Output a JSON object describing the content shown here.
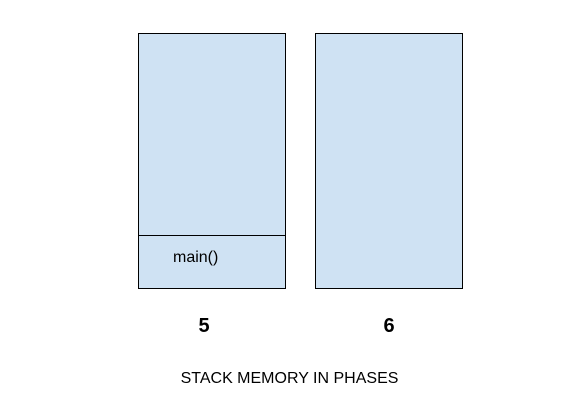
{
  "colors": {
    "stack_fill": "#cfe2f3",
    "stroke": "#000000",
    "background": "#ffffff"
  },
  "phases": [
    {
      "label": "5",
      "frames": [
        "main()"
      ]
    },
    {
      "label": "6",
      "frames": []
    }
  ],
  "caption": "STACK MEMORY IN PHASES"
}
